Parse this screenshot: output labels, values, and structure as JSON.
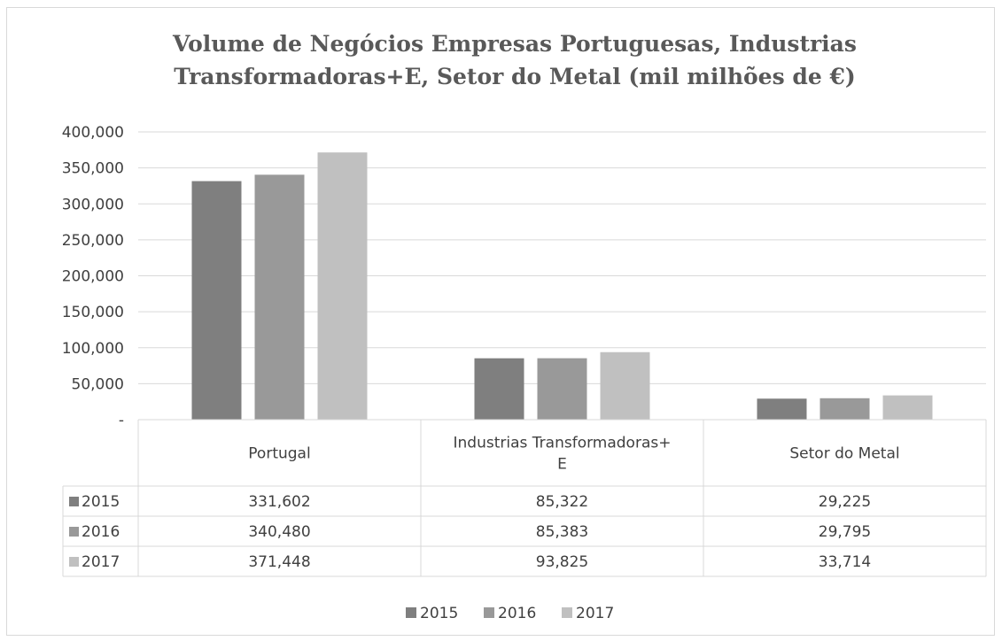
{
  "chart_data": {
    "type": "bar",
    "title": "Volume de Negócios Empresas Portuguesas, Industrias Transformadoras+E, Setor do Metal (mil milhões de €)",
    "title_lines": [
      "Volume de Negócios Empresas Portuguesas, Industrias",
      "Transformadoras+E, Setor do Metal (mil milhões de €)"
    ],
    "categories": [
      "Portugal",
      "Industrias Transformadoras+ E",
      "Setor do Metal"
    ],
    "category_lines": [
      [
        "Portugal"
      ],
      [
        "Industrias Transformadoras+",
        "E"
      ],
      [
        "Setor do Metal"
      ]
    ],
    "series": [
      {
        "name": "2015",
        "values": [
          331602,
          85322,
          29225
        ],
        "labels": [
          "331,602",
          "85,322",
          "29,225"
        ],
        "color": "#7f7f7f"
      },
      {
        "name": "2016",
        "values": [
          340480,
          85383,
          29795
        ],
        "labels": [
          "340,480",
          "85,383",
          "29,795"
        ],
        "color": "#999999"
      },
      {
        "name": "2017",
        "values": [
          371448,
          93825,
          33714
        ],
        "labels": [
          "371,448",
          "93,825",
          "33,714"
        ],
        "color": "#c0c0c0"
      }
    ],
    "ylim": [
      0,
      400000
    ],
    "yticks": [
      0,
      50000,
      100000,
      150000,
      200000,
      250000,
      300000,
      350000,
      400000
    ],
    "ytick_labels": [
      "-",
      "50,000",
      "100,000",
      "150,000",
      "200,000",
      "250,000",
      "300,000",
      "350,000",
      "400,000"
    ],
    "grid": true,
    "data_table": true,
    "legend_position": "bottom",
    "colors": {
      "gridline": "#d9d9d9",
      "text": "#404040",
      "title": "#595959"
    }
  }
}
